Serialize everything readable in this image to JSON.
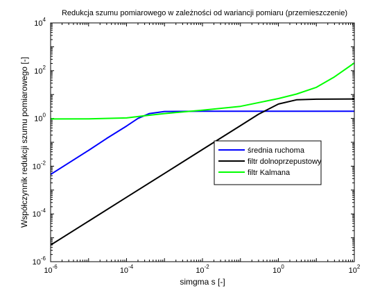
{
  "chart_data": {
    "type": "line",
    "title": "Redukcja szumu pomiarowego w zależności od wariancji pomiaru (przemieszczenie)",
    "xlabel": "simgma s [-]",
    "ylabel": "Współczynnik redukcji szumu pomiarowego [-]",
    "xscale": "log",
    "yscale": "log",
    "xlim": [
      1e-06,
      100
    ],
    "ylim": [
      1e-06,
      10000
    ],
    "x_ticks": [
      1e-06,
      0.0001,
      0.01,
      1,
      100
    ],
    "x_tick_labels": [
      {
        "base": "10",
        "exp": "-6"
      },
      {
        "base": "10",
        "exp": "-4"
      },
      {
        "base": "10",
        "exp": "-2"
      },
      {
        "base": "10",
        "exp": "0"
      },
      {
        "base": "10",
        "exp": "2"
      }
    ],
    "y_ticks": [
      1e-06,
      0.0001,
      0.01,
      1,
      100,
      10000
    ],
    "y_tick_labels": [
      {
        "base": "10",
        "exp": "-6"
      },
      {
        "base": "10",
        "exp": "-4"
      },
      {
        "base": "10",
        "exp": "-2"
      },
      {
        "base": "10",
        "exp": "0"
      },
      {
        "base": "10",
        "exp": "2"
      },
      {
        "base": "10",
        "exp": "4"
      }
    ],
    "grid": false,
    "legend_position": "center-right",
    "series": [
      {
        "name": "średnia ruchoma",
        "color": "#0000ff",
        "x": [
          1e-06,
          1e-05,
          3e-05,
          0.0001,
          0.0002,
          0.0004,
          0.001,
          0.01,
          1,
          100
        ],
        "y": [
          0.0045,
          0.046,
          0.145,
          0.48,
          1.0,
          1.6,
          1.95,
          2.0,
          2.0,
          2.0
        ]
      },
      {
        "name": "filtr dolnoprzepustowy",
        "color": "#000000",
        "x": [
          1e-06,
          1e-05,
          0.0001,
          0.001,
          0.01,
          0.1,
          0.3,
          1,
          3,
          10,
          100
        ],
        "y": [
          5e-06,
          5e-05,
          0.0005,
          0.005,
          0.05,
          0.5,
          1.5,
          4.0,
          6.0,
          6.4,
          6.5
        ]
      },
      {
        "name": "filtr Kalmana",
        "color": "#00ff00",
        "x": [
          1e-06,
          1e-05,
          0.0001,
          0.0003,
          0.001,
          0.01,
          0.1,
          1,
          3,
          10,
          30,
          100
        ],
        "y": [
          0.95,
          0.96,
          1.05,
          1.3,
          1.6,
          2.2,
          3.2,
          6.8,
          10.5,
          20,
          55,
          210
        ]
      }
    ]
  }
}
